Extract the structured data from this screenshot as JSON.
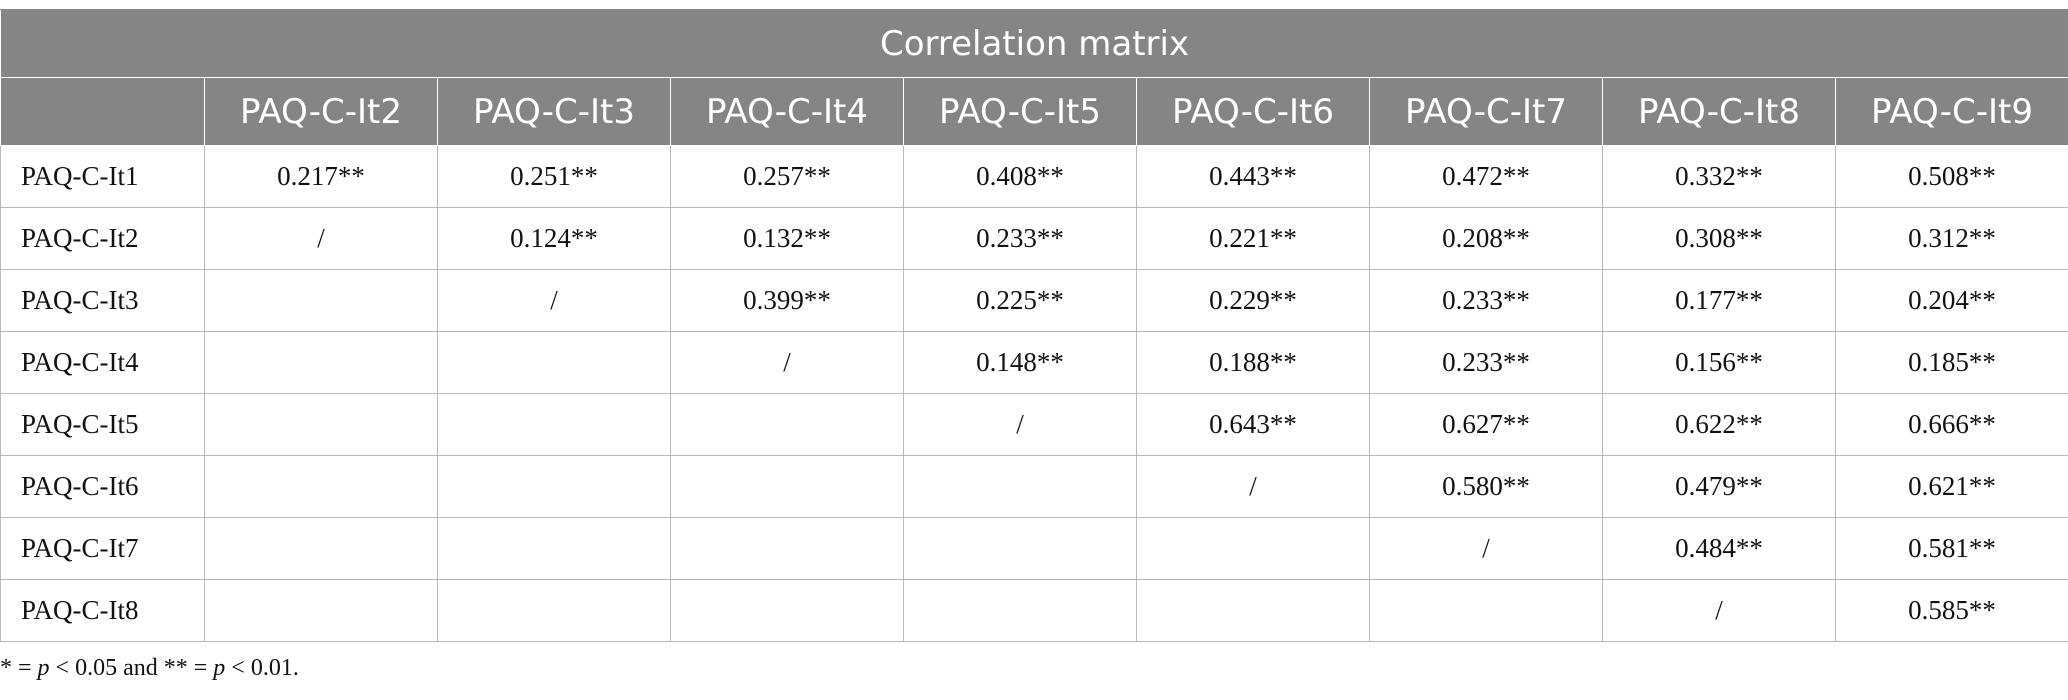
{
  "table": {
    "title": "Correlation matrix",
    "columns": [
      "PAQ-C-It2",
      "PAQ-C-It3",
      "PAQ-C-It4",
      "PAQ-C-It5",
      "PAQ-C-It6",
      "PAQ-C-It7",
      "PAQ-C-It8",
      "PAQ-C-It9"
    ],
    "rows": [
      [
        "PAQ-C-It1",
        "0.217**",
        "0.251**",
        "0.257**",
        "0.408**",
        "0.443**",
        "0.472**",
        "0.332**",
        "0.508**"
      ],
      [
        "PAQ-C-It2",
        "/",
        "0.124**",
        "0.132**",
        "0.233**",
        "0.221**",
        "0.208**",
        "0.308**",
        "0.312**"
      ],
      [
        "PAQ-C-It3",
        null,
        "/",
        "0.399**",
        "0.225**",
        "0.229**",
        "0.233**",
        "0.177**",
        "0.204**"
      ],
      [
        "PAQ-C-It4",
        null,
        null,
        "/",
        "0.148**",
        "0.188**",
        "0.233**",
        "0.156**",
        "0.185**"
      ],
      [
        "PAQ-C-It5",
        null,
        null,
        null,
        "/",
        "0.643**",
        "0.627**",
        "0.622**",
        "0.666**"
      ],
      [
        "PAQ-C-It6",
        null,
        null,
        null,
        null,
        "/",
        "0.580**",
        "0.479**",
        "0.621**"
      ],
      [
        "PAQ-C-It7",
        null,
        null,
        null,
        null,
        null,
        "/",
        "0.484**",
        "0.581**"
      ],
      [
        "PAQ-C-It8",
        null,
        null,
        null,
        null,
        null,
        null,
        "/",
        "0.585**"
      ]
    ],
    "footnote": [
      "* = ",
      "p",
      " < 0.05 and ** = ",
      "p",
      " < 0.01."
    ]
  }
}
